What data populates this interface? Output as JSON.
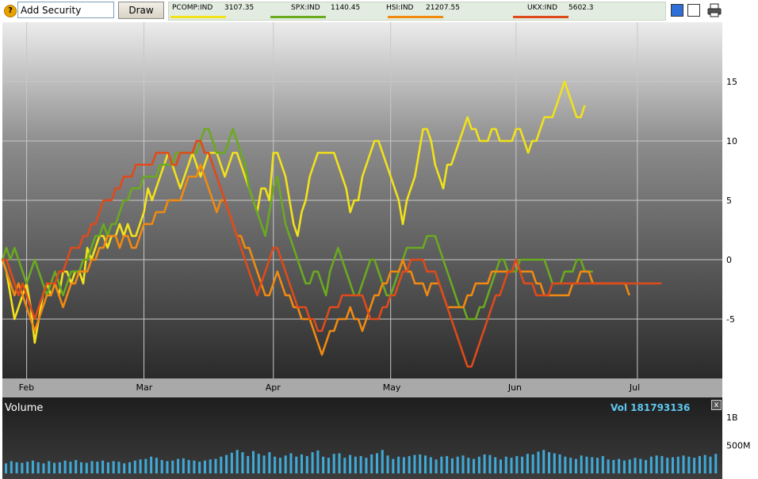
{
  "toolbar": {
    "help_label": "?",
    "add_security_value": "Add Security",
    "draw_label": "Draw",
    "print_icon": "printer-icon",
    "view_single_icon": "single-chart-icon",
    "view_multi_icon": "multi-chart-icon"
  },
  "legend": [
    {
      "symbol": "PCOMP:IND",
      "value": "3107.35",
      "color": "#f2e21a"
    },
    {
      "symbol": "SPX:IND",
      "value": "1140.45",
      "color": "#6aaa1f"
    },
    {
      "symbol": "HSI:IND",
      "value": "21207.55",
      "color": "#f28a10"
    },
    {
      "symbol": "UKX:IND",
      "value": "5602.3",
      "color": "#e04a1a"
    }
  ],
  "volume_panel": {
    "title": "Volume",
    "readout": "Vol 181793136",
    "close_label": "x",
    "yticks": [
      "1B",
      "500M"
    ]
  },
  "chart_data": {
    "type": "line",
    "x_tick_labels": [
      "Feb",
      "Mar",
      "Apr",
      "May",
      "Jun",
      "Jul"
    ],
    "x_tick_positions": [
      6,
      35,
      67,
      96,
      127,
      157
    ],
    "x_range": [
      0,
      178
    ],
    "y_tick_labels": [
      "15",
      "10",
      "5",
      "0",
      "-5"
    ],
    "y_tick_values": [
      15,
      10,
      5,
      0,
      -5
    ],
    "ylim": [
      -10,
      20
    ],
    "grid": true,
    "series": [
      {
        "name": "PCOMP:IND",
        "color": "#f2e21a",
        "values": [
          0,
          -1,
          -3,
          -5,
          -4,
          -3,
          -2,
          -4,
          -7,
          -5,
          -3,
          -2,
          -3,
          -2,
          -3,
          -1,
          -1,
          -2,
          -1,
          -1,
          -2,
          1,
          0,
          1,
          2,
          2,
          1,
          2,
          2,
          3,
          2,
          3,
          2,
          2,
          3,
          4,
          6,
          5,
          6,
          7,
          8,
          9,
          8,
          7,
          6,
          7,
          8,
          9,
          8,
          7,
          8,
          9,
          9,
          9,
          8,
          7,
          8,
          9,
          9,
          8,
          7,
          6,
          5,
          4,
          6,
          6,
          5,
          9,
          9,
          8,
          7,
          5,
          3,
          2,
          4,
          5,
          7,
          8,
          9,
          9,
          9,
          9,
          9,
          8,
          7,
          6,
          4,
          5,
          5,
          7,
          8,
          9,
          10,
          10,
          9,
          8,
          7,
          6,
          5,
          3,
          5,
          6,
          7,
          9,
          11,
          11,
          10,
          8,
          7,
          6,
          8,
          8,
          9,
          10,
          11,
          12,
          11,
          11,
          10,
          10,
          10,
          11,
          11,
          10,
          10,
          10,
          10,
          11,
          11,
          10,
          9,
          10,
          10,
          11,
          12,
          12,
          12,
          13,
          14,
          15,
          14,
          13,
          12,
          12,
          13
        ]
      },
      {
        "name": "SPX:IND",
        "color": "#6aaa1f",
        "values": [
          0,
          1,
          0,
          1,
          0,
          -1,
          -2,
          -1,
          0,
          -1,
          -2,
          -3,
          -2,
          -1,
          -2,
          -3,
          -2,
          -1,
          -1,
          -1,
          0,
          0,
          1,
          2,
          2,
          3,
          2,
          3,
          3,
          4,
          5,
          5,
          6,
          6,
          6,
          7,
          7,
          7,
          7,
          8,
          8,
          8,
          8,
          9,
          9,
          9,
          9,
          9,
          9,
          10,
          11,
          11,
          10,
          9,
          9,
          9,
          10,
          11,
          10,
          9,
          8,
          6,
          5,
          4,
          3,
          2,
          4,
          6,
          7,
          5,
          3,
          2,
          1,
          0,
          -1,
          -2,
          -2,
          -1,
          -1,
          -2,
          -3,
          -1,
          0,
          1,
          0,
          -1,
          -2,
          -3,
          -3,
          -2,
          -1,
          0,
          0,
          -1,
          -2,
          -3,
          -3,
          -2,
          -1,
          0,
          1,
          1,
          1,
          1,
          1,
          2,
          2,
          2,
          1,
          0,
          -1,
          -2,
          -3,
          -4,
          -4,
          -5,
          -5,
          -5,
          -4,
          -4,
          -3,
          -2,
          -1,
          0,
          0,
          -1,
          -1,
          -1,
          0,
          0,
          0,
          0,
          0,
          0,
          0,
          -1,
          -2,
          -2,
          -2,
          -1,
          -1,
          -1,
          0,
          0,
          -1,
          -1,
          -1
        ]
      },
      {
        "name": "HSI:IND",
        "color": "#f28a10",
        "values": [
          0,
          -1,
          -2,
          -3,
          -2,
          -3,
          -4,
          -5,
          -6,
          -5,
          -4,
          -3,
          -3,
          -2,
          -3,
          -4,
          -3,
          -2,
          -2,
          -1,
          -1,
          -1,
          0,
          0,
          1,
          1,
          2,
          2,
          2,
          1,
          2,
          2,
          1,
          1,
          2,
          3,
          3,
          3,
          4,
          4,
          4,
          5,
          5,
          5,
          5,
          6,
          7,
          7,
          7,
          8,
          7,
          6,
          5,
          4,
          5,
          5,
          4,
          3,
          2,
          2,
          1,
          1,
          0,
          -1,
          -2,
          -3,
          -3,
          -2,
          -1,
          -2,
          -3,
          -3,
          -4,
          -4,
          -5,
          -5,
          -5,
          -6,
          -7,
          -8,
          -7,
          -6,
          -6,
          -5,
          -5,
          -5,
          -4,
          -5,
          -5,
          -6,
          -5,
          -4,
          -3,
          -3,
          -2,
          -2,
          -1,
          -1,
          -1,
          0,
          -1,
          -1,
          -2,
          -2,
          -2,
          -3,
          -2,
          -2,
          -2,
          -3,
          -4,
          -4,
          -4,
          -4,
          -4,
          -3,
          -3,
          -2,
          -2,
          -2,
          -2,
          -1,
          -1,
          -1,
          -1,
          -1,
          -1,
          0,
          -1,
          -1,
          -1,
          -1,
          -2,
          -2,
          -3,
          -3,
          -3,
          -3,
          -3,
          -3,
          -3,
          -2,
          -2,
          -1,
          -1,
          -1,
          -2,
          -2,
          -2,
          -2,
          -2,
          -2,
          -2,
          -2,
          -2,
          -3
        ]
      },
      {
        "name": "UKX:IND",
        "color": "#e04a1a",
        "values": [
          0,
          0,
          -1,
          -2,
          -3,
          -2,
          -3,
          -4,
          -5,
          -4,
          -3,
          -2,
          -2,
          -2,
          -1,
          -1,
          0,
          1,
          1,
          1,
          2,
          2,
          3,
          3,
          4,
          5,
          5,
          5,
          6,
          6,
          7,
          7,
          7,
          8,
          8,
          8,
          8,
          8,
          9,
          9,
          9,
          9,
          8,
          8,
          9,
          9,
          9,
          9,
          10,
          10,
          9,
          9,
          8,
          7,
          6,
          5,
          4,
          3,
          2,
          1,
          0,
          -1,
          -2,
          -3,
          -2,
          -1,
          0,
          1,
          1,
          0,
          -1,
          -2,
          -3,
          -4,
          -4,
          -4,
          -5,
          -5,
          -6,
          -6,
          -5,
          -4,
          -4,
          -4,
          -3,
          -3,
          -3,
          -3,
          -3,
          -3,
          -4,
          -5,
          -5,
          -5,
          -4,
          -4,
          -3,
          -3,
          -2,
          -1,
          -1,
          0,
          0,
          0,
          0,
          -1,
          -1,
          -1,
          -2,
          -3,
          -4,
          -5,
          -6,
          -7,
          -8,
          -9,
          -9,
          -8,
          -7,
          -6,
          -5,
          -4,
          -3,
          -3,
          -2,
          -1,
          -1,
          0,
          -1,
          -2,
          -2,
          -2,
          -3,
          -3,
          -3,
          -3,
          -2,
          -2,
          -2,
          -2,
          -2,
          -2,
          -2,
          -2,
          -2,
          -2,
          -2,
          -2,
          -2,
          -2,
          -2,
          -2,
          -2,
          -2,
          -2,
          -2,
          -2,
          -2,
          -2,
          -2,
          -2,
          -2,
          -2,
          -2
        ]
      }
    ],
    "volume": {
      "ylim": [
        0,
        1300
      ],
      "values": [
        180,
        220,
        200,
        190,
        210,
        230,
        200,
        180,
        220,
        190,
        200,
        230,
        210,
        240,
        200,
        190,
        220,
        210,
        230,
        200,
        220,
        210,
        180,
        200,
        230,
        250,
        260,
        300,
        280,
        240,
        220,
        230,
        260,
        270,
        240,
        230,
        210,
        230,
        250,
        260,
        300,
        330,
        370,
        420,
        380,
        310,
        400,
        350,
        320,
        380,
        300,
        280,
        320,
        360,
        300,
        340,
        310,
        380,
        410,
        300,
        280,
        350,
        360,
        280,
        330,
        300,
        310,
        280,
        340,
        360,
        420,
        320,
        260,
        300,
        290,
        310,
        330,
        340,
        320,
        290,
        250,
        300,
        310,
        270,
        300,
        320,
        280,
        260,
        300,
        340,
        330,
        290,
        250,
        300,
        280,
        310,
        300,
        350,
        340,
        390,
        420,
        380,
        360,
        340,
        300,
        280,
        260,
        320,
        300,
        290,
        280,
        310,
        250,
        240,
        260,
        230,
        250,
        280,
        260,
        240,
        300,
        320,
        310,
        280,
        290,
        300,
        320,
        300,
        280,
        310,
        330,
        300,
        350
      ]
    }
  }
}
